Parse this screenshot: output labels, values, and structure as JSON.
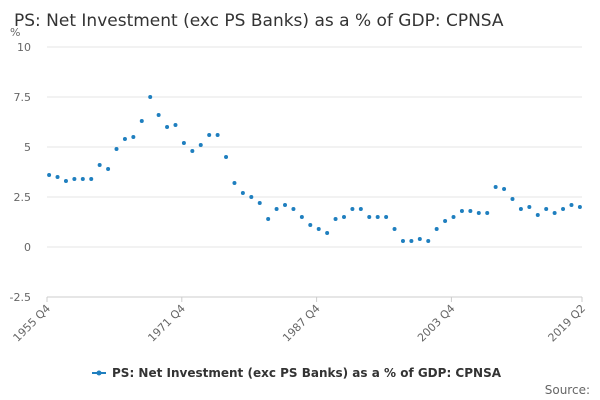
{
  "chart_data": {
    "type": "scatter",
    "title": "PS: Net Investment (exc PS Banks) as a % of GDP: CPNSA",
    "y_label": "%",
    "source": "Source:",
    "x": [
      1956,
      1957,
      1958,
      1959,
      1960,
      1961,
      1962,
      1963,
      1964,
      1965,
      1966,
      1967,
      1968,
      1969,
      1970,
      1971,
      1972,
      1973,
      1974,
      1975,
      1976,
      1977,
      1978,
      1979,
      1980,
      1981,
      1982,
      1983,
      1984,
      1985,
      1986,
      1987,
      1988,
      1989,
      1990,
      1991,
      1992,
      1993,
      1994,
      1995,
      1996,
      1997,
      1998,
      1999,
      2000,
      2001,
      2002,
      2003,
      2004,
      2005,
      2006,
      2007,
      2008,
      2009,
      2010,
      2011,
      2012,
      2013,
      2014,
      2015,
      2016,
      2017,
      2018,
      2019
    ],
    "series": [
      {
        "name": "PS: Net Investment (exc PS Banks) as a % of GDP: CPNSA",
        "color": "#1f7fbf",
        "values": [
          3.6,
          3.5,
          3.3,
          3.4,
          3.4,
          3.4,
          4.1,
          3.9,
          4.9,
          5.4,
          5.5,
          6.3,
          7.5,
          6.6,
          6.0,
          6.1,
          5.2,
          4.8,
          5.1,
          5.6,
          5.6,
          4.5,
          3.2,
          2.7,
          2.5,
          2.2,
          1.4,
          1.9,
          2.1,
          1.9,
          1.5,
          1.1,
          0.9,
          0.7,
          1.4,
          1.5,
          1.9,
          1.9,
          1.5,
          1.5,
          1.5,
          0.9,
          0.3,
          0.3,
          0.4,
          0.3,
          0.9,
          1.3,
          1.5,
          1.8,
          1.8,
          1.7,
          1.7,
          3.0,
          2.9,
          2.4,
          1.9,
          2.0,
          1.6,
          1.9,
          1.7,
          1.9,
          2.1,
          2.0
        ]
      }
    ],
    "xlim": [
      1955.75,
      2019.25
    ],
    "xticks": [
      {
        "value": 1955.75,
        "label": "1955 Q4"
      },
      {
        "value": 1971.75,
        "label": "1971 Q4"
      },
      {
        "value": 1987.75,
        "label": "1987 Q4"
      },
      {
        "value": 2003.75,
        "label": "2003 Q4"
      },
      {
        "value": 2019.25,
        "label": "2019 Q2"
      }
    ],
    "ylim": [
      -2.5,
      10
    ],
    "yticks": [
      -2.5,
      0,
      2.5,
      5,
      7.5,
      10
    ],
    "grid": true
  }
}
